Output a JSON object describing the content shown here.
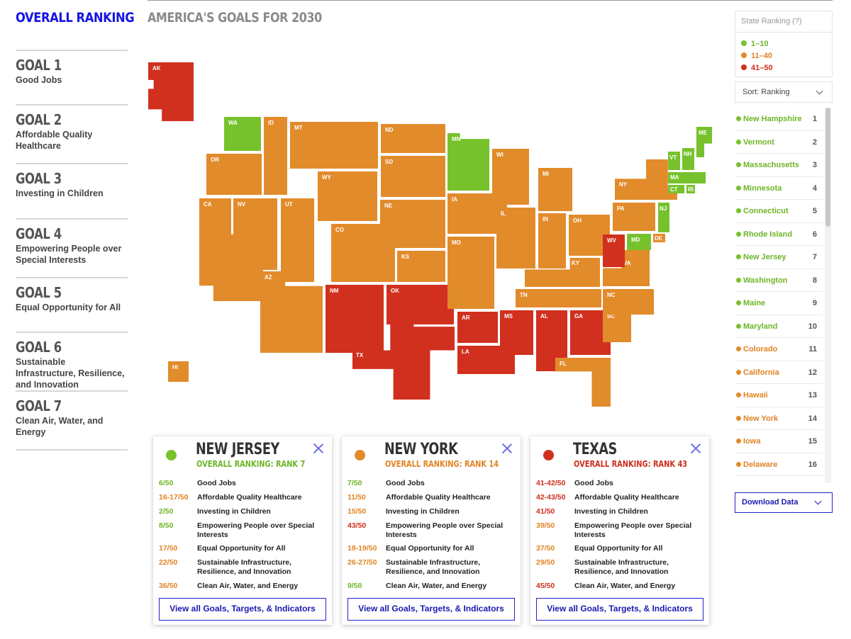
{
  "sidebar": {
    "title": "OVERALL RANKING",
    "goals": [
      {
        "num": "GOAL 1",
        "name": "Good Jobs"
      },
      {
        "num": "GOAL 2",
        "name": "Affordable Quality Healthcare"
      },
      {
        "num": "GOAL 3",
        "name": "Investing in Children"
      },
      {
        "num": "GOAL 4",
        "name": "Empowering People over Special Interests"
      },
      {
        "num": "GOAL 5",
        "name": "Equal Opportunity for All"
      },
      {
        "num": "GOAL 6",
        "name": "Sustainable Infrastructure, Resilience, and Innovation"
      },
      {
        "num": "GOAL 7",
        "name": "Clean Air, Water, and Energy"
      }
    ]
  },
  "map": {
    "title": "AMERICA'S GOALS FOR 2030",
    "states": [
      {
        "abbr": "AK",
        "tier": "red"
      },
      {
        "abbr": "HI",
        "tier": "orange"
      },
      {
        "abbr": "WA",
        "tier": "green"
      },
      {
        "abbr": "OR",
        "tier": "orange"
      },
      {
        "abbr": "CA",
        "tier": "orange"
      },
      {
        "abbr": "ID",
        "tier": "orange"
      },
      {
        "abbr": "NV",
        "tier": "orange"
      },
      {
        "abbr": "MT",
        "tier": "orange"
      },
      {
        "abbr": "WY",
        "tier": "orange"
      },
      {
        "abbr": "UT",
        "tier": "orange"
      },
      {
        "abbr": "AZ",
        "tier": "orange"
      },
      {
        "abbr": "CO",
        "tier": "orange"
      },
      {
        "abbr": "NM",
        "tier": "red"
      },
      {
        "abbr": "ND",
        "tier": "orange"
      },
      {
        "abbr": "SD",
        "tier": "orange"
      },
      {
        "abbr": "NE",
        "tier": "orange"
      },
      {
        "abbr": "KS",
        "tier": "orange"
      },
      {
        "abbr": "OK",
        "tier": "red"
      },
      {
        "abbr": "TX",
        "tier": "red"
      },
      {
        "abbr": "MN",
        "tier": "green"
      },
      {
        "abbr": "IA",
        "tier": "orange"
      },
      {
        "abbr": "MO",
        "tier": "orange"
      },
      {
        "abbr": "AR",
        "tier": "red"
      },
      {
        "abbr": "LA",
        "tier": "red"
      },
      {
        "abbr": "WI",
        "tier": "orange"
      },
      {
        "abbr": "IL",
        "tier": "orange"
      },
      {
        "abbr": "MI",
        "tier": "orange"
      },
      {
        "abbr": "IN",
        "tier": "orange"
      },
      {
        "abbr": "OH",
        "tier": "orange"
      },
      {
        "abbr": "KY",
        "tier": "orange"
      },
      {
        "abbr": "TN",
        "tier": "orange"
      },
      {
        "abbr": "MS",
        "tier": "red"
      },
      {
        "abbr": "AL",
        "tier": "red"
      },
      {
        "abbr": "GA",
        "tier": "red"
      },
      {
        "abbr": "FL",
        "tier": "orange"
      },
      {
        "abbr": "SC",
        "tier": "orange"
      },
      {
        "abbr": "NC",
        "tier": "orange"
      },
      {
        "abbr": "VA",
        "tier": "orange"
      },
      {
        "abbr": "WV",
        "tier": "red"
      },
      {
        "abbr": "MD",
        "tier": "green"
      },
      {
        "abbr": "DE",
        "tier": "orange"
      },
      {
        "abbr": "PA",
        "tier": "orange"
      },
      {
        "abbr": "NJ",
        "tier": "green"
      },
      {
        "abbr": "NY",
        "tier": "orange"
      },
      {
        "abbr": "VT",
        "tier": "green"
      },
      {
        "abbr": "NH",
        "tier": "green"
      },
      {
        "abbr": "ME",
        "tier": "green"
      },
      {
        "abbr": "MA",
        "tier": "green"
      },
      {
        "abbr": "CT",
        "tier": "green"
      },
      {
        "abbr": "RI",
        "tier": "green"
      }
    ]
  },
  "legend": {
    "title": "State Ranking (?)",
    "items": [
      {
        "label": "1–10",
        "tier": "green"
      },
      {
        "label": "11–40",
        "tier": "orange"
      },
      {
        "label": "41–50",
        "tier": "red"
      }
    ]
  },
  "sort": {
    "label": "Sort: Ranking"
  },
  "rankings": [
    {
      "name": "New Hampshire",
      "rank": "1",
      "tier": "green"
    },
    {
      "name": "Vermont",
      "rank": "2",
      "tier": "green"
    },
    {
      "name": "Massachusetts",
      "rank": "3",
      "tier": "green"
    },
    {
      "name": "Minnesota",
      "rank": "4",
      "tier": "green"
    },
    {
      "name": "Connecticut",
      "rank": "5",
      "tier": "green"
    },
    {
      "name": "Rhode Island",
      "rank": "6",
      "tier": "green"
    },
    {
      "name": "New Jersey",
      "rank": "7",
      "tier": "green"
    },
    {
      "name": "Washington",
      "rank": "8",
      "tier": "green"
    },
    {
      "name": "Maine",
      "rank": "9",
      "tier": "green"
    },
    {
      "name": "Maryland",
      "rank": "10",
      "tier": "green"
    },
    {
      "name": "Colorado",
      "rank": "11",
      "tier": "orange"
    },
    {
      "name": "California",
      "rank": "12",
      "tier": "orange"
    },
    {
      "name": "Hawaii",
      "rank": "13",
      "tier": "orange"
    },
    {
      "name": "New York",
      "rank": "14",
      "tier": "orange"
    },
    {
      "name": "Iowa",
      "rank": "15",
      "tier": "orange"
    },
    {
      "name": "Delaware",
      "rank": "16",
      "tier": "orange"
    }
  ],
  "download": {
    "label": "Download Data"
  },
  "cards": [
    {
      "state": "NEW JERSEY",
      "rank_label": "OVERALL RANKING: RANK 7",
      "tier": "green",
      "rows": [
        {
          "score": "6/50",
          "tier": "green",
          "goal": "Good Jobs"
        },
        {
          "score": "16-17/50",
          "tier": "orange",
          "goal": "Affordable Quality Healthcare"
        },
        {
          "score": "2/50",
          "tier": "green",
          "goal": "Investing in Children"
        },
        {
          "score": "8/50",
          "tier": "green",
          "goal": "Empowering People over Special Interests"
        },
        {
          "score": "17/50",
          "tier": "orange",
          "goal": "Equal Opportunity for All"
        },
        {
          "score": "22/50",
          "tier": "orange",
          "goal": "Sustainable Infrastructure, Resilience, and Innovation"
        },
        {
          "score": "36/50",
          "tier": "orange",
          "goal": "Clean Air, Water, and Energy"
        }
      ],
      "button": "View all Goals, Targets, & Indicators"
    },
    {
      "state": "NEW YORK",
      "rank_label": "OVERALL RANKING: RANK 14",
      "tier": "orange",
      "rows": [
        {
          "score": "7/50",
          "tier": "green",
          "goal": "Good Jobs"
        },
        {
          "score": "11/50",
          "tier": "orange",
          "goal": "Affordable Quality Healthcare"
        },
        {
          "score": "15/50",
          "tier": "orange",
          "goal": "Investing in Children"
        },
        {
          "score": "43/50",
          "tier": "red",
          "goal": "Empowering People over Special Interests"
        },
        {
          "score": "18-19/50",
          "tier": "orange",
          "goal": "Equal Opportunity for All"
        },
        {
          "score": "26-27/50",
          "tier": "orange",
          "goal": "Sustainable Infrastructure, Resilience, and Innovation"
        },
        {
          "score": "9/50",
          "tier": "green",
          "goal": "Clean Air, Water, and Energy"
        }
      ],
      "button": "View all Goals, Targets, & Indicators"
    },
    {
      "state": "TEXAS",
      "rank_label": "OVERALL RANKING: RANK 43",
      "tier": "red",
      "rows": [
        {
          "score": "41-42/50",
          "tier": "red",
          "goal": "Good Jobs"
        },
        {
          "score": "42-43/50",
          "tier": "red",
          "goal": "Affordable Quality Healthcare"
        },
        {
          "score": "41/50",
          "tier": "red",
          "goal": "Investing in Children"
        },
        {
          "score": "39/50",
          "tier": "orange",
          "goal": "Empowering People over Special Interests"
        },
        {
          "score": "37/50",
          "tier": "orange",
          "goal": "Equal Opportunity for All"
        },
        {
          "score": "29/50",
          "tier": "orange",
          "goal": "Sustainable Infrastructure, Resilience, and Innovation"
        },
        {
          "score": "45/50",
          "tier": "red",
          "goal": "Clean Air, Water, and Energy"
        }
      ],
      "button": "View all Goals, Targets, & Indicators"
    }
  ]
}
